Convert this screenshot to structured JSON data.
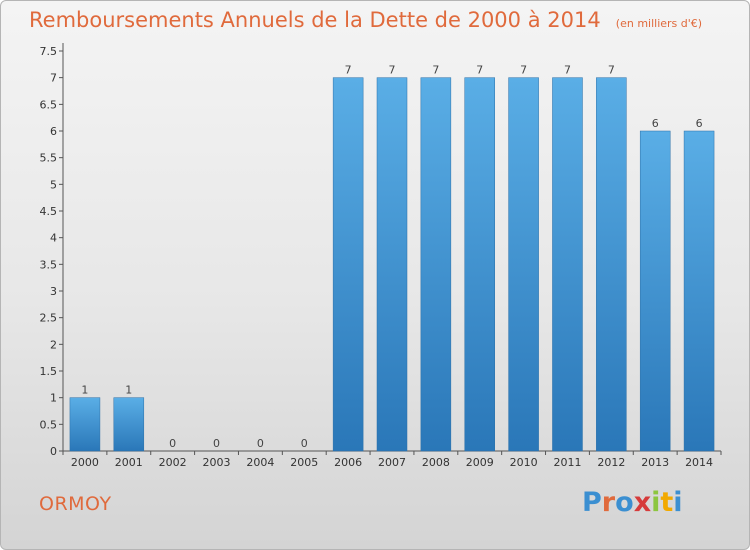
{
  "header": {
    "title": "Remboursements Annuels de la Dette de 2000 à 2014",
    "unit": "(en milliers d'€)"
  },
  "commune": "ORMOY",
  "logo": {
    "letters": [
      "P",
      "r",
      "o",
      "x",
      "i",
      "t",
      "i"
    ]
  },
  "colors": {
    "title": "#e06a3c",
    "bar_top": "#5aaee6",
    "bar_bottom": "#2a77b8",
    "axis": "#555555",
    "grid": "#c8c8c8",
    "logo": [
      "#3b8fd1",
      "#e06a3c",
      "#3b8fd1",
      "#d63b3b",
      "#8cc63f",
      "#f2a900",
      "#3b8fd1"
    ]
  },
  "chart_data": {
    "type": "bar",
    "title": "Remboursements Annuels de la Dette de 2000 à 2014",
    "subtitle": "(en milliers d'€)",
    "categories": [
      "2000",
      "2001",
      "2002",
      "2003",
      "2004",
      "2005",
      "2006",
      "2007",
      "2008",
      "2009",
      "2010",
      "2011",
      "2012",
      "2013",
      "2014"
    ],
    "values": [
      1,
      1,
      0,
      0,
      0,
      0,
      7,
      7,
      7,
      7,
      7,
      7,
      7,
      6,
      6
    ],
    "data_labels": [
      "1",
      "1",
      "0",
      "0",
      "0",
      "0",
      "7",
      "7",
      "7",
      "7",
      "7",
      "7",
      "7",
      "6",
      "6"
    ],
    "ylim": [
      0,
      7.5
    ],
    "yticks": [
      "0",
      "0.5",
      "1",
      "1.5",
      "2",
      "2.5",
      "3",
      "3.5",
      "4",
      "4.5",
      "5",
      "5.5",
      "6",
      "6.5",
      "7",
      "7.5"
    ],
    "xlabel": "",
    "ylabel": "",
    "grid": false
  }
}
